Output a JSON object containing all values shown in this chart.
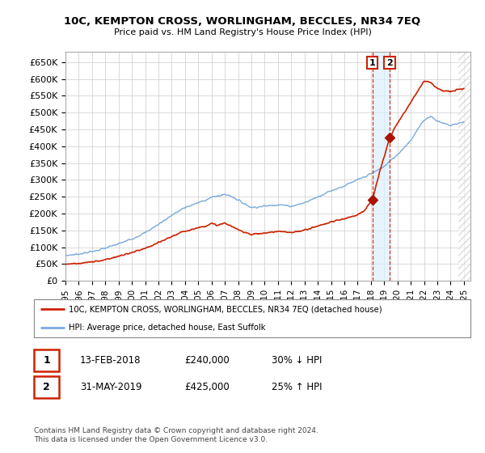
{
  "title": "10C, KEMPTON CROSS, WORLINGHAM, BECCLES, NR34 7EQ",
  "subtitle": "Price paid vs. HM Land Registry's House Price Index (HPI)",
  "ylim": [
    0,
    680000
  ],
  "yticks": [
    0,
    50000,
    100000,
    150000,
    200000,
    250000,
    300000,
    350000,
    400000,
    450000,
    500000,
    550000,
    600000,
    650000
  ],
  "ytick_labels": [
    "£0",
    "£50K",
    "£100K",
    "£150K",
    "£200K",
    "£250K",
    "£300K",
    "£350K",
    "£400K",
    "£450K",
    "£500K",
    "£550K",
    "£600K",
    "£650K"
  ],
  "xlim_start": 1995.0,
  "xlim_end": 2025.5,
  "xtick_years": [
    1995,
    1996,
    1997,
    1998,
    1999,
    2000,
    2001,
    2002,
    2003,
    2004,
    2005,
    2006,
    2007,
    2008,
    2009,
    2010,
    2011,
    2012,
    2013,
    2014,
    2015,
    2016,
    2017,
    2018,
    2019,
    2020,
    2021,
    2022,
    2023,
    2024,
    2025
  ],
  "hpi_color": "#7aaadd",
  "price_color": "#cc2200",
  "marker_color": "#aa1100",
  "dashed_color": "#cc2200",
  "shade_color": "#ddeeff",
  "transaction1_x": 2018.12,
  "transaction1_y": 240000,
  "transaction2_x": 2019.42,
  "transaction2_y": 425000,
  "legend_line1": "10C, KEMPTON CROSS, WORLINGHAM, BECCLES, NR34 7EQ (detached house)",
  "legend_line2": "HPI: Average price, detached house, East Suffolk",
  "table_row1_num": "1",
  "table_row1_date": "13-FEB-2018",
  "table_row1_price": "£240,000",
  "table_row1_hpi": "30% ↓ HPI",
  "table_row2_num": "2",
  "table_row2_date": "31-MAY-2019",
  "table_row2_price": "£425,000",
  "table_row2_hpi": "25% ↑ HPI",
  "footnote": "Contains HM Land Registry data © Crown copyright and database right 2024.\nThis data is licensed under the Open Government Licence v3.0.",
  "background_color": "#ffffff",
  "grid_color": "#cccccc",
  "hpi_years_pts": [
    1995,
    1996,
    1997,
    1998,
    1999,
    2000,
    2001,
    2002,
    2003,
    2004,
    2005,
    2006,
    2007,
    2007.5,
    2008,
    2009,
    2010,
    2011,
    2012,
    2013,
    2014,
    2015,
    2016,
    2017,
    2018,
    2019,
    2019.5,
    2020,
    2021,
    2022,
    2022.5,
    2023,
    2023.5,
    2024,
    2024.5,
    2025
  ],
  "hpi_vals_pts": [
    75000,
    80000,
    87000,
    97000,
    110000,
    125000,
    143000,
    168000,
    195000,
    218000,
    232000,
    248000,
    257000,
    252000,
    240000,
    218000,
    222000,
    227000,
    222000,
    232000,
    250000,
    268000,
    282000,
    300000,
    318000,
    340000,
    358000,
    375000,
    418000,
    478000,
    490000,
    475000,
    468000,
    462000,
    468000,
    472000
  ],
  "price_years_pts": [
    1995,
    1996,
    1997,
    1998,
    1999,
    2000,
    2001,
    2002,
    2003,
    2004,
    2005,
    2005.5,
    2006,
    2006.5,
    2007,
    2007.5,
    2008,
    2009,
    2010,
    2011,
    2012,
    2013,
    2014,
    2015,
    2016,
    2017,
    2017.5,
    2018.12,
    2018.13,
    2018.5,
    2019.0,
    2019.42,
    2019.43,
    2020,
    2021,
    2022,
    2022.5,
    2023,
    2023.5,
    2024,
    2024.5,
    2025
  ],
  "price_vals_pts": [
    50000,
    52000,
    56000,
    63000,
    73000,
    84000,
    96000,
    113000,
    132000,
    148000,
    158000,
    163000,
    170000,
    165000,
    172000,
    162000,
    152000,
    138000,
    142000,
    147000,
    143000,
    151000,
    163000,
    175000,
    185000,
    197000,
    208000,
    240000,
    240000,
    300000,
    370000,
    425000,
    425000,
    468000,
    530000,
    595000,
    590000,
    572000,
    565000,
    562000,
    568000,
    572000
  ]
}
